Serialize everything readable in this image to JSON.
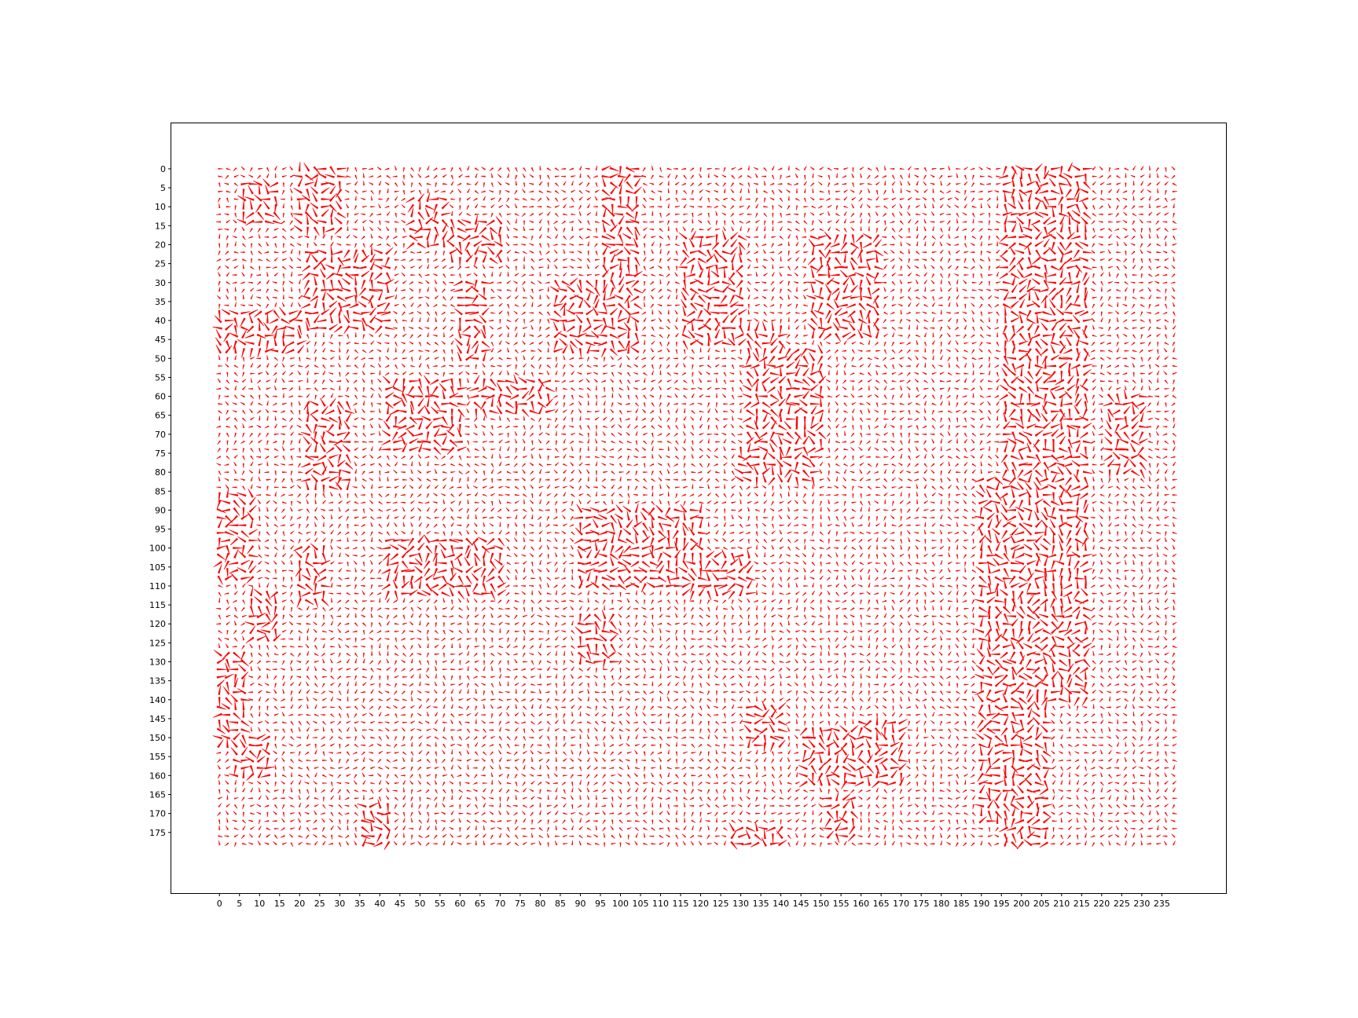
{
  "chart_data": {
    "type": "quiver",
    "title": "",
    "xlabel": "",
    "ylabel": "",
    "grid": false,
    "legend": "none",
    "x_range": [
      0,
      239
    ],
    "y_range": [
      0,
      179
    ],
    "y_axis_inverted": true,
    "xlim": [
      -12,
      251
    ],
    "ylim": [
      -12,
      191
    ],
    "xticks": [
      0,
      5,
      10,
      15,
      20,
      25,
      30,
      35,
      40,
      45,
      50,
      55,
      60,
      65,
      70,
      75,
      80,
      85,
      90,
      95,
      100,
      105,
      110,
      115,
      120,
      125,
      130,
      135,
      140,
      145,
      150,
      155,
      160,
      165,
      170,
      175,
      180,
      185,
      190,
      195,
      200,
      205,
      210,
      215,
      220,
      225,
      230,
      235
    ],
    "yticks": [
      0,
      5,
      10,
      15,
      20,
      25,
      30,
      35,
      40,
      45,
      50,
      55,
      60,
      65,
      70,
      75,
      80,
      85,
      90,
      95,
      100,
      105,
      110,
      115,
      120,
      125,
      130,
      135,
      140,
      145,
      150,
      155,
      160,
      165,
      170,
      175
    ],
    "arrow_color": "#ff0000",
    "dense_arrow_regions": [
      {
        "x": [
          6,
          15
        ],
        "y": [
          4,
          15
        ]
      },
      {
        "x": [
          20,
          31
        ],
        "y": [
          0,
          17
        ]
      },
      {
        "x": [
          22,
          42
        ],
        "y": [
          22,
          42
        ]
      },
      {
        "x": [
          0,
          20
        ],
        "y": [
          38,
          48
        ]
      },
      {
        "x": [
          48,
          56
        ],
        "y": [
          8,
          20
        ]
      },
      {
        "x": [
          58,
          70
        ],
        "y": [
          14,
          24
        ]
      },
      {
        "x": [
          59,
          67
        ],
        "y": [
          30,
          50
        ]
      },
      {
        "x": [
          42,
          60
        ],
        "y": [
          55,
          75
        ]
      },
      {
        "x": [
          63,
          82
        ],
        "y": [
          56,
          64
        ]
      },
      {
        "x": [
          22,
          32
        ],
        "y": [
          62,
          84
        ]
      },
      {
        "x": [
          84,
          105
        ],
        "y": [
          30,
          48
        ]
      },
      {
        "x": [
          95,
          104
        ],
        "y": [
          0,
          28
        ]
      },
      {
        "x": [
          116,
          130
        ],
        "y": [
          18,
          47
        ]
      },
      {
        "x": [
          132,
          140
        ],
        "y": [
          42,
          72
        ]
      },
      {
        "x": [
          140,
          150
        ],
        "y": [
          48,
          74
        ]
      },
      {
        "x": [
          148,
          165
        ],
        "y": [
          18,
          45
        ]
      },
      {
        "x": [
          129,
          148
        ],
        "y": [
          74,
          82
        ]
      },
      {
        "x": [
          0,
          8
        ],
        "y": [
          85,
          108
        ]
      },
      {
        "x": [
          8,
          14
        ],
        "y": [
          112,
          125
        ]
      },
      {
        "x": [
          0,
          6
        ],
        "y": [
          128,
          152
        ]
      },
      {
        "x": [
          3,
          12
        ],
        "y": [
          150,
          160
        ]
      },
      {
        "x": [
          20,
          26
        ],
        "y": [
          100,
          115
        ]
      },
      {
        "x": [
          42,
          70
        ],
        "y": [
          98,
          112
        ]
      },
      {
        "x": [
          90,
          120
        ],
        "y": [
          90,
          110
        ]
      },
      {
        "x": [
          116,
          132
        ],
        "y": [
          102,
          113
        ]
      },
      {
        "x": [
          90,
          98
        ],
        "y": [
          118,
          130
        ]
      },
      {
        "x": [
          132,
          140
        ],
        "y": [
          142,
          152
        ]
      },
      {
        "x": [
          145,
          170
        ],
        "y": [
          148,
          162
        ]
      },
      {
        "x": [
          160,
          170
        ],
        "y": [
          145,
          155
        ]
      },
      {
        "x": [
          152,
          158
        ],
        "y": [
          166,
          177
        ]
      },
      {
        "x": [
          35,
          42
        ],
        "y": [
          168,
          178
        ]
      },
      {
        "x": [
          128,
          140
        ],
        "y": [
          174,
          179
        ]
      },
      {
        "x": [
          189,
          197
        ],
        "y": [
          82,
          172
        ]
      },
      {
        "x": [
          196,
          206
        ],
        "y": [
          0,
          179
        ]
      },
      {
        "x": [
          203,
          216
        ],
        "y": [
          0,
          140
        ]
      },
      {
        "x": [
          222,
          230
        ],
        "y": [
          60,
          80
        ]
      }
    ]
  }
}
